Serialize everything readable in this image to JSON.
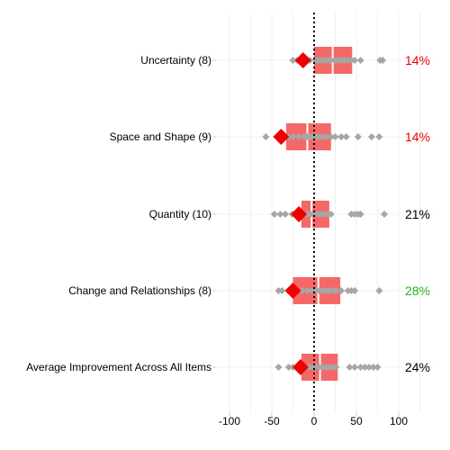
{
  "colors": {
    "box": "#f56868",
    "median_line": "#ffffff",
    "dot": "#a6a6a6",
    "mean_marker": "#ee0000",
    "pct_red": "#ee0000",
    "pct_green": "#22b522",
    "pct_black": "#000000",
    "grid": "#f0f0f0",
    "zero_line": "#000000"
  },
  "chart_data": {
    "type": "boxplot",
    "title": "",
    "xlabel": "",
    "ylabel": "",
    "xlim": [
      -110,
      125
    ],
    "x_ticks": [
      "-100",
      "-50",
      "0",
      "50",
      "100"
    ],
    "x_tick_values": [
      -100,
      -50,
      0,
      50,
      100
    ],
    "reference_line": {
      "x": 0,
      "style": "dotted"
    },
    "grid": true,
    "categories": [
      "Uncertainty (8)",
      "Space and Shape (9)",
      "Quantity (10)",
      "Change and Relationships (8)",
      "Average Improvement Across All Items"
    ],
    "percentages": [
      "14%",
      "14%",
      "21%",
      "28%",
      "24%"
    ],
    "percentage_colors": [
      "red",
      "red",
      "black",
      "green",
      "black"
    ],
    "boxes": [
      {
        "q1": 0,
        "median": 22,
        "q3": 45,
        "mean": -13
      },
      {
        "q1": -33,
        "median": -8,
        "q3": 20,
        "mean": -39
      },
      {
        "q1": -15,
        "median": -3,
        "q3": 18,
        "mean": -18
      },
      {
        "q1": -25,
        "median": 5,
        "q3": 31,
        "mean": -25
      },
      {
        "q1": -15,
        "median": 7,
        "q3": 28,
        "mean": -16
      }
    ],
    "points": [
      [
        -25,
        -20,
        -15,
        -10,
        -5,
        2,
        5,
        8,
        12,
        15,
        18,
        20,
        24,
        28,
        32,
        36,
        40,
        44,
        48,
        55,
        78,
        81
      ],
      [
        -57,
        -40,
        -35,
        -30,
        -25,
        -18,
        -12,
        -8,
        -5,
        -2,
        2,
        5,
        10,
        15,
        20,
        25,
        32,
        38,
        52,
        68,
        77
      ],
      [
        -47,
        -40,
        -34,
        -26,
        -20,
        -12,
        -8,
        -4,
        0,
        4,
        8,
        12,
        16,
        20,
        44,
        48,
        52,
        55,
        83
      ],
      [
        -42,
        -38,
        -30,
        -25,
        -20,
        -14,
        -8,
        -3,
        2,
        6,
        10,
        14,
        18,
        23,
        26,
        32,
        40,
        44,
        48,
        77
      ],
      [
        -42,
        -30,
        -25,
        -18,
        -14,
        -10,
        -6,
        -2,
        2,
        6,
        10,
        14,
        18,
        22,
        26,
        42,
        48,
        55,
        60,
        65,
        70,
        75
      ]
    ]
  }
}
